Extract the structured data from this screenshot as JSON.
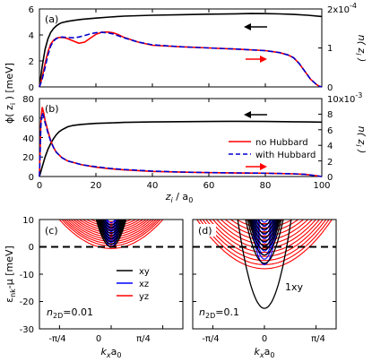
{
  "chart_data": [
    {
      "type": "line",
      "panel_label": "(a)",
      "x_range": [
        0,
        100
      ],
      "x_ticks": [
        0,
        20,
        40,
        60,
        80,
        100
      ],
      "left_axis": {
        "range": [
          0,
          6
        ],
        "ticks": [
          "0",
          "2",
          "4",
          "6"
        ]
      },
      "right_axis": {
        "range": [
          0,
          2
        ],
        "ticks": [
          "0",
          "1",
          "2x10^-4"
        ],
        "label": "n(z_i)"
      },
      "series": [
        {
          "axis": "left",
          "color": "#000000",
          "style": "solid",
          "x": [
            0,
            1,
            2,
            3,
            4,
            5,
            6,
            7,
            8,
            10,
            12,
            15,
            20,
            25,
            30,
            40,
            50,
            60,
            70,
            75,
            80,
            85,
            90,
            95,
            100
          ],
          "y": [
            0,
            1.6,
            2.9,
            3.7,
            4.2,
            4.5,
            4.7,
            4.85,
            4.95,
            5.05,
            5.12,
            5.2,
            5.3,
            5.38,
            5.45,
            5.52,
            5.56,
            5.6,
            5.63,
            5.65,
            5.64,
            5.62,
            5.58,
            5.52,
            5.42
          ]
        },
        {
          "axis": "right",
          "color": "#ff0000",
          "style": "solid",
          "x": [
            0,
            1,
            2,
            3,
            4,
            5,
            6,
            7,
            8,
            9,
            10,
            12,
            14,
            16,
            18,
            20,
            22,
            24,
            26,
            28,
            30,
            35,
            40,
            50,
            60,
            70,
            80,
            85,
            88,
            90,
            92,
            94,
            96,
            98,
            99,
            100
          ],
          "y": [
            0,
            0.25,
            0.6,
            0.9,
            1.1,
            1.2,
            1.25,
            1.27,
            1.27,
            1.26,
            1.24,
            1.18,
            1.12,
            1.15,
            1.25,
            1.35,
            1.4,
            1.41,
            1.39,
            1.34,
            1.27,
            1.15,
            1.07,
            1.03,
            1.0,
            0.97,
            0.93,
            0.88,
            0.82,
            0.75,
            0.6,
            0.4,
            0.2,
            0.07,
            0.02,
            0
          ]
        },
        {
          "axis": "right",
          "color": "#0000cc",
          "style": "dashed",
          "x": [
            0,
            1,
            2,
            3,
            4,
            5,
            6,
            7,
            8,
            10,
            12,
            14,
            16,
            18,
            20,
            22,
            24,
            26,
            28,
            30,
            35,
            40,
            50,
            60,
            70,
            80,
            85,
            88,
            90,
            92,
            94,
            96,
            98,
            99,
            100
          ],
          "y": [
            0,
            0.2,
            0.5,
            0.82,
            1.05,
            1.18,
            1.24,
            1.27,
            1.28,
            1.27,
            1.26,
            1.28,
            1.32,
            1.36,
            1.39,
            1.4,
            1.39,
            1.36,
            1.31,
            1.26,
            1.15,
            1.08,
            1.03,
            1.0,
            0.97,
            0.93,
            0.88,
            0.82,
            0.75,
            0.6,
            0.4,
            0.2,
            0.07,
            0.02,
            0
          ]
        }
      ]
    },
    {
      "type": "line",
      "panel_label": "(b)",
      "x_range": [
        0,
        100
      ],
      "x_ticks": [
        "0",
        "20",
        "40",
        "60",
        "80",
        "100"
      ],
      "xlabel": "z_i / a_0",
      "left_axis": {
        "range": [
          0,
          80
        ],
        "ticks": [
          "0",
          "20",
          "40",
          "60",
          "80"
        ],
        "label": "ϕ(z_i) [meV]"
      },
      "right_axis": {
        "range": [
          0,
          10
        ],
        "ticks": [
          "0",
          "2",
          "4",
          "6",
          "8",
          "10x10^-3"
        ],
        "label": "n(z_i)"
      },
      "legend": {
        "placement": "center-right",
        "entries": [
          "no Hubbard",
          "with Hubbard"
        ]
      },
      "series": [
        {
          "axis": "left",
          "color": "#000000",
          "style": "solid",
          "x": [
            0,
            1,
            2,
            3,
            4,
            5,
            6,
            7,
            8,
            10,
            12,
            15,
            20,
            25,
            30,
            40,
            50,
            60,
            70,
            80,
            90,
            95,
            100
          ],
          "y": [
            0,
            10,
            20,
            28,
            34,
            39,
            43,
            46,
            48,
            51,
            52.5,
            53.5,
            54.5,
            55,
            55.5,
            56,
            56.3,
            56.5,
            56.6,
            56.5,
            56.2,
            56,
            55.8
          ]
        },
        {
          "axis": "right",
          "color": "#ff0000",
          "style": "solid",
          "name": "no Hubbard",
          "x": [
            0,
            0.5,
            1,
            1.5,
            2,
            3,
            4,
            5,
            6,
            8,
            10,
            15,
            20,
            25,
            30,
            40,
            50,
            60,
            70,
            80,
            90,
            94,
            96,
            98,
            100
          ],
          "y": [
            0,
            7,
            8.9,
            8.2,
            7.2,
            5.8,
            4.6,
            3.7,
            3.1,
            2.4,
            2.0,
            1.5,
            1.2,
            1.0,
            0.85,
            0.66,
            0.56,
            0.5,
            0.45,
            0.42,
            0.35,
            0.28,
            0.2,
            0.1,
            0
          ]
        },
        {
          "axis": "right",
          "color": "#0000cc",
          "style": "dashed",
          "name": "with Hubbard",
          "x": [
            0,
            0.5,
            1,
            1.5,
            2,
            3,
            4,
            5,
            6,
            8,
            10,
            15,
            20,
            25,
            30,
            40,
            50,
            60,
            70,
            80,
            90,
            94,
            96,
            98,
            100
          ],
          "y": [
            0,
            6.5,
            8.2,
            7.7,
            6.9,
            5.6,
            4.5,
            3.7,
            3.1,
            2.4,
            2.0,
            1.5,
            1.25,
            1.05,
            0.9,
            0.7,
            0.58,
            0.51,
            0.46,
            0.42,
            0.35,
            0.28,
            0.2,
            0.1,
            0
          ]
        }
      ]
    },
    {
      "type": "line",
      "panel_label": "(c)",
      "annotation": "n_2D=0.01",
      "xlabel": "k_x a_0",
      "ylabel": "ε_nk-μ [meV]",
      "x_range": [
        -0.785,
        0.785
      ],
      "x_ticks": [
        "-π/4",
        "0",
        "π/4"
      ],
      "y_range": [
        -30,
        10
      ],
      "y_ticks": [
        "-30",
        "-20",
        "-10",
        "0",
        "10"
      ],
      "fermi_level": 0,
      "legend": {
        "placement": "center-right",
        "entries": [
          {
            "name": "xy",
            "color": "#000000"
          },
          {
            "name": "xz",
            "color": "#0000ff"
          },
          {
            "name": "yz",
            "color": "#ff0000"
          }
        ]
      },
      "band_families": [
        {
          "name": "xy",
          "color": "#000000",
          "curvature": 380,
          "minima": [
            0,
            1,
            2,
            3,
            4,
            5,
            6,
            7,
            8
          ]
        },
        {
          "name": "xz",
          "color": "#0000ff",
          "curvature": 700,
          "minima": [
            0,
            0.8,
            1.6,
            2.4,
            3.2,
            4,
            4.8,
            5.6,
            6.4,
            7.2,
            8,
            8.8
          ]
        },
        {
          "name": "yz",
          "color": "#ff0000",
          "curvature": 33,
          "minima": [
            -0.6,
            0.4,
            1.2,
            2,
            2.8,
            3.6,
            4.4,
            5.2,
            6,
            6.8,
            7.6,
            8.4,
            9.2
          ]
        }
      ]
    },
    {
      "type": "line",
      "panel_label": "(d)",
      "annotation": "n_2D=0.1",
      "band_label": "1xy",
      "xlabel": "k_x a_0",
      "x_range": [
        -0.785,
        0.785
      ],
      "x_ticks": [
        "-π/4",
        "0",
        "π/4"
      ],
      "y_range": [
        -30,
        10
      ],
      "fermi_level": 0,
      "band_families": [
        {
          "name": "xy",
          "color": "#000000",
          "curvature": 380,
          "minima": [
            -22.5,
            -6,
            -3,
            -1,
            0.5,
            2,
            3.5,
            5,
            6.5,
            8
          ]
        },
        {
          "name": "xz",
          "color": "#0000ff",
          "curvature": 700,
          "minima": [
            -6.5,
            -4.5,
            -3,
            -1.5,
            0,
            1.5,
            3,
            4.5,
            6,
            7.5,
            9
          ]
        },
        {
          "name": "yz",
          "color": "#ff0000",
          "curvature": 33,
          "minima": [
            -8,
            -6.5,
            -5,
            -3.5,
            -2,
            -0.5,
            1,
            2.5,
            4,
            5.5,
            7,
            8.5
          ]
        }
      ]
    }
  ]
}
